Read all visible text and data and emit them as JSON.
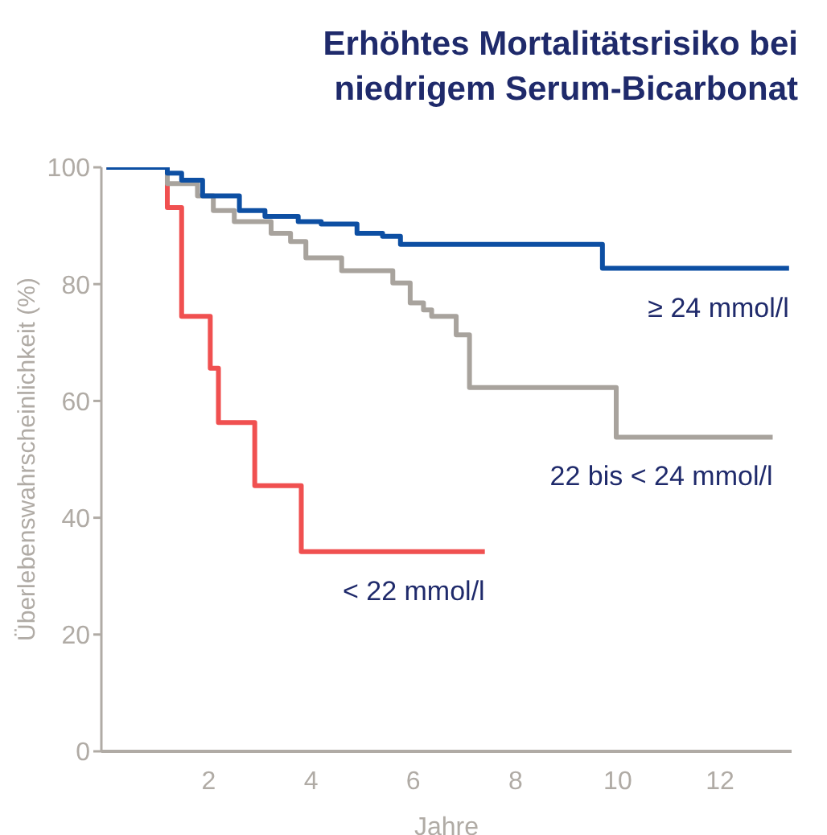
{
  "chart_data": {
    "type": "step",
    "title": "Erhöhtes Mortalitätsrisiko bei\nniedrigem Serum-Bicarbonat",
    "xlabel": "Jahre",
    "ylabel": "Überlebenswahrscheinlichkeit (%)",
    "xlim": [
      -0.1,
      13.4
    ],
    "xticks": [
      2,
      4,
      6,
      8,
      10,
      12
    ],
    "ylim": [
      0,
      100
    ],
    "yticks": [
      0,
      20,
      40,
      60,
      80,
      100
    ],
    "marker": "none",
    "series": [
      {
        "name": "≥ 24 mmol/l",
        "color": "#0d4fa3",
        "x": [
          0,
          1.19,
          1.47,
          1.88,
          2.6,
          3.1,
          3.75,
          4.2,
          4.9,
          5.4,
          5.75,
          9.7,
          13.35
        ],
        "values": [
          100,
          100,
          99,
          97.8,
          95.1,
          92.6,
          91.6,
          90.7,
          90.3,
          88.7,
          88.2,
          86.8,
          82.7
        ]
      },
      {
        "name": "22 bis < 24 mmol/l",
        "color": "#a8a39d",
        "x": [
          0,
          1.19,
          1.78,
          2.09,
          2.5,
          3.22,
          3.6,
          3.9,
          4.6,
          5.6,
          5.94,
          6.2,
          6.36,
          6.84,
          7.1,
          9.97,
          13.03
        ],
        "values": [
          100,
          100,
          97.2,
          95.1,
          92.6,
          90.7,
          88.7,
          87.3,
          84.5,
          82.3,
          80.2,
          76.8,
          75.6,
          74.5,
          71.3,
          62.3,
          53.8
        ]
      },
      {
        "name": "< 22 mmol/l",
        "color": "#f05050",
        "x": [
          0,
          1.19,
          1.47,
          2.03,
          2.19,
          2.9,
          3.81,
          7.4
        ],
        "values": [
          100,
          100,
          93.1,
          74.5,
          65.6,
          56.3,
          45.5,
          34.2
        ]
      }
    ]
  }
}
